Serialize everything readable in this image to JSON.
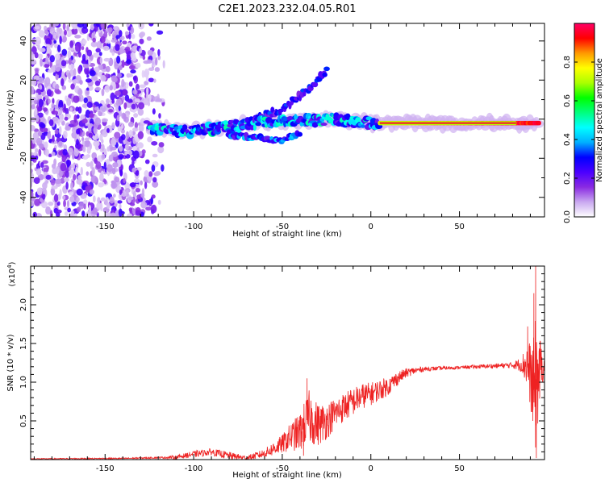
{
  "title": "C2E1.2023.232.04.05.R01",
  "chart_data": [
    {
      "type": "heatmap",
      "title": "",
      "xlabel": "Height of straight line (km)",
      "ylabel": "Frequency (Hz)",
      "xlim": [
        -192,
        98
      ],
      "ylim": [
        -50,
        49
      ],
      "x_ticks": [
        -150,
        -100,
        -50,
        0,
        50
      ],
      "y_ticks": [
        -40,
        -20,
        0,
        20,
        40
      ],
      "colorbar": {
        "label": "Normalized spectral amplitude",
        "range": [
          0,
          1
        ],
        "ticks": [
          "0.0",
          "0.2",
          "0.4",
          "0.6",
          "0.8"
        ],
        "colors": [
          "#ffffff",
          "#c9a8f0",
          "#8a2be2",
          "#4b00ff",
          "#0000ff",
          "#00b0ff",
          "#00ffff",
          "#00ff80",
          "#00ff00",
          "#aaff00",
          "#ffff00",
          "#ff9900",
          "#ff0000",
          "#ff0066"
        ]
      },
      "features": [
        {
          "name": "noise region",
          "x_range": [
            -192,
            -115
          ],
          "freq_range": [
            -50,
            49
          ],
          "amplitude": 0.15
        },
        {
          "name": "main track",
          "points": [
            [
              -125,
              -5
            ],
            [
              -100,
              -6
            ],
            [
              -80,
              -4
            ],
            [
              -60,
              -1
            ],
            [
              -40,
              -1
            ],
            [
              -20,
              0
            ],
            [
              0,
              -2
            ],
            [
              20,
              -2
            ],
            [
              50,
              -2
            ],
            [
              80,
              -2
            ],
            [
              95,
              -2
            ]
          ],
          "amplitude_start": 0.4,
          "amplitude_end": 1.0
        },
        {
          "name": "upper branch",
          "points": [
            [
              -65,
              1
            ],
            [
              -50,
              5
            ],
            [
              -40,
              12
            ],
            [
              -30,
              20
            ],
            [
              -25,
              25
            ]
          ],
          "amplitude": 0.25
        },
        {
          "name": "lower branch",
          "points": [
            [
              -80,
              -8
            ],
            [
              -60,
              -10
            ],
            [
              -50,
              -11
            ],
            [
              -40,
              -7
            ]
          ],
          "amplitude": 0.3
        }
      ]
    },
    {
      "type": "line",
      "title": "",
      "xlabel": "Height of straight line (km)",
      "ylabel": "SNR (10 * v/v)",
      "y_multiplier_label": "(x10",
      "y_multiplier_exp": "4",
      "xlim": [
        -192,
        98
      ],
      "ylim": [
        0,
        2.5
      ],
      "x_ticks": [
        -150,
        -100,
        -50,
        0,
        50
      ],
      "y_ticks": [
        0.5,
        1.0,
        1.5,
        2.0
      ],
      "color": "#ee2222",
      "envelope": {
        "x": [
          -192,
          -140,
          -110,
          -100,
          -90,
          -80,
          -70,
          -60,
          -50,
          -45,
          -40,
          -35,
          -30,
          -25,
          -20,
          -15,
          -10,
          -5,
          0,
          5,
          10,
          15,
          20,
          25,
          30,
          40,
          50,
          60,
          70,
          80,
          85,
          88,
          90,
          92,
          94,
          96,
          98
        ],
        "y": [
          0.01,
          0.015,
          0.03,
          0.07,
          0.1,
          0.05,
          0.02,
          0.08,
          0.2,
          0.3,
          0.35,
          0.55,
          0.45,
          0.5,
          0.6,
          0.68,
          0.75,
          0.82,
          0.85,
          0.9,
          0.95,
          1.05,
          1.12,
          1.15,
          1.17,
          1.18,
          1.19,
          1.2,
          1.21,
          1.22,
          1.23,
          1.22,
          1.1,
          0.9,
          1.05,
          1.18,
          1.2
        ]
      },
      "amplitude_of_fluctuation": {
        "x": [
          -192,
          -120,
          -100,
          -80,
          -70,
          -60,
          -50,
          -40,
          -35,
          -30,
          -20,
          -10,
          0,
          10,
          20,
          30,
          50,
          70,
          80,
          85,
          88,
          91,
          93,
          95,
          98
        ],
        "y": [
          0.005,
          0.01,
          0.04,
          0.05,
          0.03,
          0.06,
          0.12,
          0.25,
          0.35,
          0.28,
          0.2,
          0.18,
          0.15,
          0.12,
          0.06,
          0.03,
          0.02,
          0.03,
          0.04,
          0.1,
          0.3,
          0.5,
          0.9,
          0.5,
          0.05
        ]
      },
      "spikes": [
        {
          "x": 93.0,
          "y": 2.5
        },
        {
          "x": 93.4,
          "y": 0.02
        },
        {
          "x": 92.0,
          "y": 2.15
        },
        {
          "x": 91.4,
          "y": 0.5
        },
        {
          "x": 88.5,
          "y": 1.72
        },
        {
          "x": -36.0,
          "y": 1.05
        },
        {
          "x": -38.0,
          "y": 0.05
        }
      ]
    }
  ]
}
